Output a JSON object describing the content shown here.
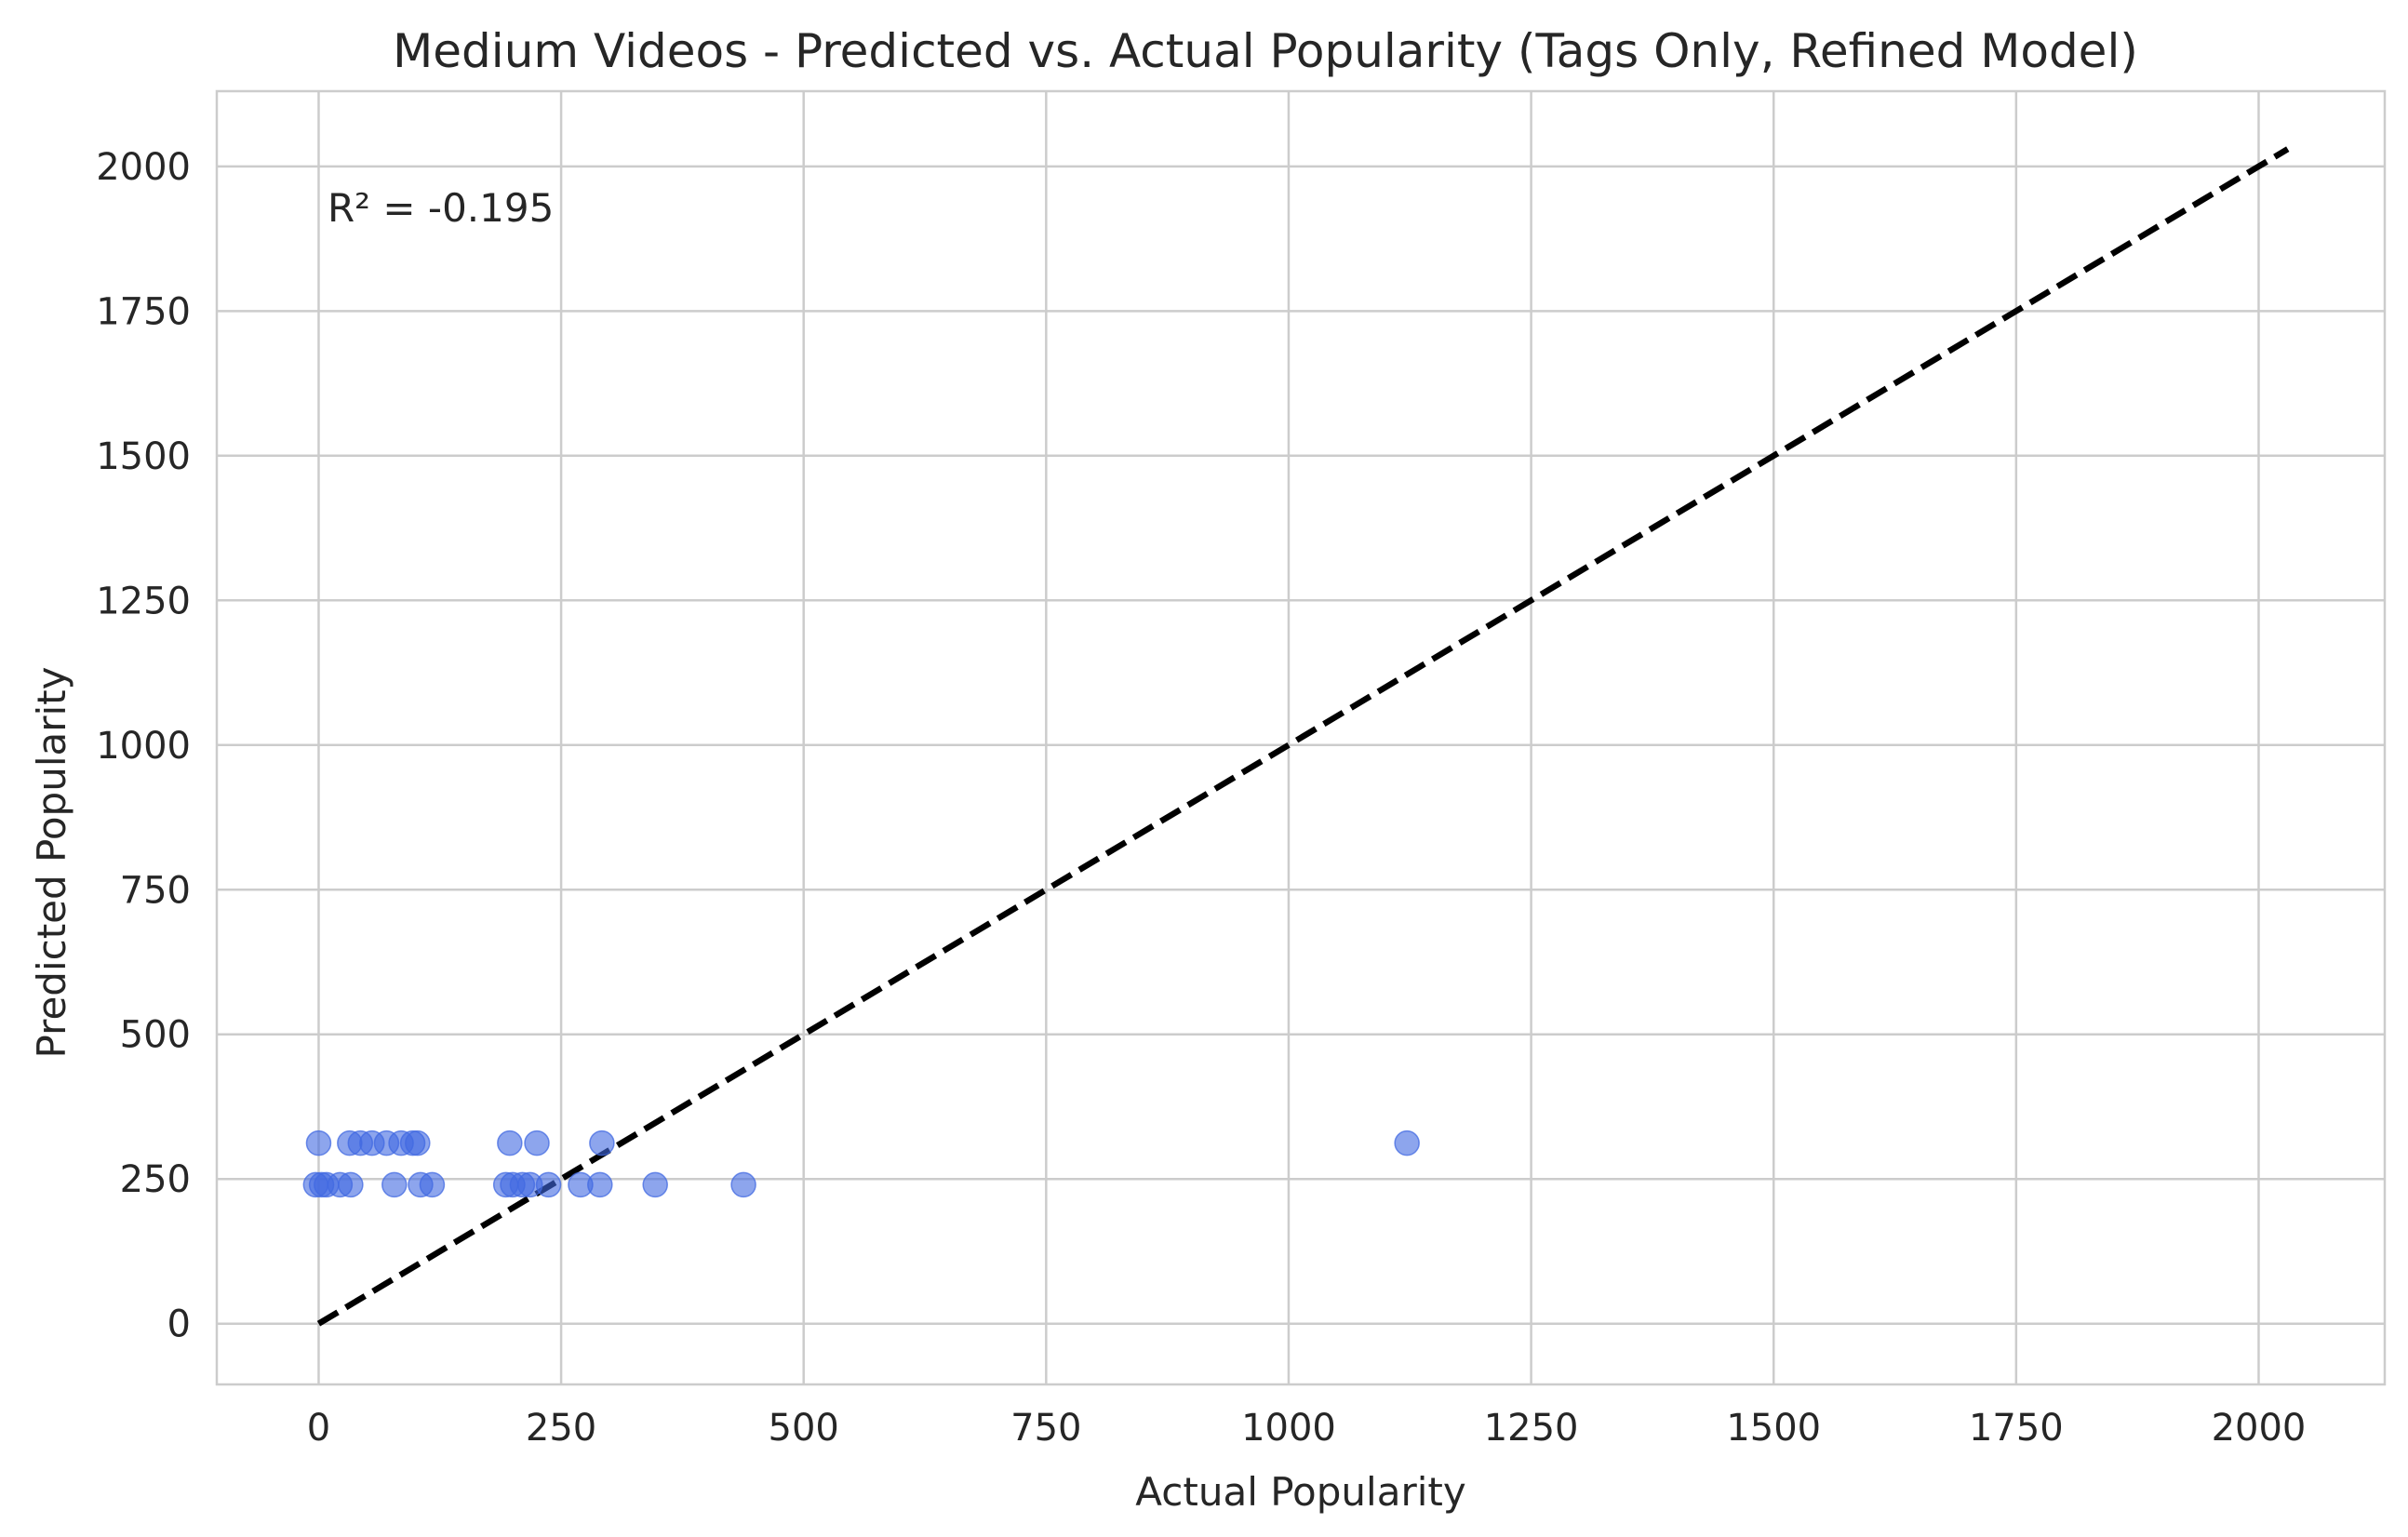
{
  "chart_data": {
    "type": "scatter",
    "title": "Medium Videos - Predicted vs. Actual Popularity (Tags Only, Refined Model)",
    "xlabel": "Actual Popularity",
    "ylabel": "Predicted Popularity",
    "xlim": [
      -105,
      2130
    ],
    "ylim": [
      -105,
      2130
    ],
    "xticks": [
      0,
      250,
      500,
      750,
      1000,
      1250,
      1500,
      1750,
      2000
    ],
    "yticks": [
      0,
      250,
      500,
      750,
      1000,
      1250,
      1500,
      1750,
      2000
    ],
    "grid": true,
    "annotation": "R² = -0.195",
    "reference_line": {
      "from": [
        0,
        0
      ],
      "to": [
        2030,
        2030
      ],
      "style": "dashed",
      "color": "#000000"
    },
    "point_color": "#4169e1",
    "points": [
      {
        "x": 0,
        "y": 312
      },
      {
        "x": 32,
        "y": 312
      },
      {
        "x": 43,
        "y": 312
      },
      {
        "x": 55,
        "y": 312
      },
      {
        "x": 70,
        "y": 312
      },
      {
        "x": 85,
        "y": 312
      },
      {
        "x": 97,
        "y": 312
      },
      {
        "x": 102,
        "y": 312
      },
      {
        "x": 197,
        "y": 312
      },
      {
        "x": 225,
        "y": 312
      },
      {
        "x": 292,
        "y": 312
      },
      {
        "x": 1122,
        "y": 312
      },
      {
        "x": -3,
        "y": 240
      },
      {
        "x": 3,
        "y": 240
      },
      {
        "x": 8,
        "y": 240
      },
      {
        "x": 22,
        "y": 240
      },
      {
        "x": 33,
        "y": 240
      },
      {
        "x": 78,
        "y": 240
      },
      {
        "x": 105,
        "y": 240
      },
      {
        "x": 117,
        "y": 240
      },
      {
        "x": 193,
        "y": 240
      },
      {
        "x": 200,
        "y": 240
      },
      {
        "x": 210,
        "y": 240
      },
      {
        "x": 218,
        "y": 240
      },
      {
        "x": 237,
        "y": 240
      },
      {
        "x": 270,
        "y": 240
      },
      {
        "x": 290,
        "y": 240
      },
      {
        "x": 347,
        "y": 240
      },
      {
        "x": 438,
        "y": 240
      }
    ]
  }
}
